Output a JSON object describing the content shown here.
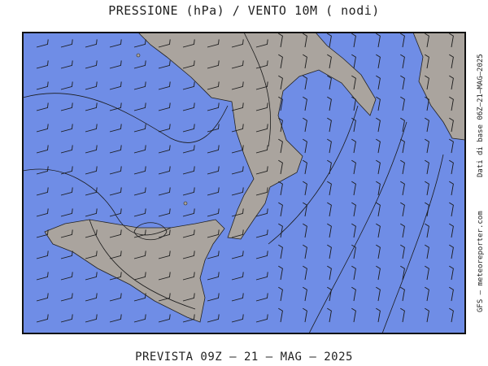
{
  "header": {
    "title": "PRESSIONE (hPa) / VENTO 10M ( nodi)"
  },
  "footer": {
    "forecast": "PREVISTA 09Z – 21 – MAG – 2025"
  },
  "side": {
    "base_data": "Dati di base 06Z–21–MAG–2025",
    "source": "GFS – meteoreporter.com"
  },
  "colors": {
    "sea": "#6f8de6",
    "land": "#aaa49e",
    "lines": "#1a1a1a"
  }
}
